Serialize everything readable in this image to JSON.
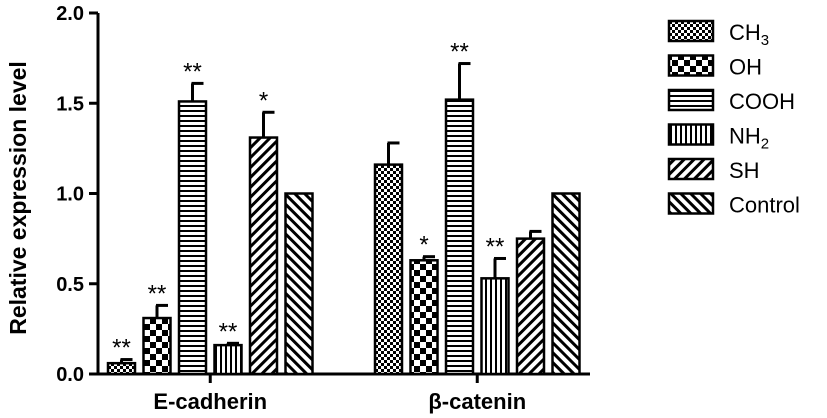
{
  "chart_data": {
    "type": "bar",
    "title": "",
    "xlabel": "",
    "ylabel": "Relative expression level",
    "ylim": [
      0,
      2.0
    ],
    "yticks": [
      "0.0",
      "0.5",
      "1.0",
      "1.5",
      "2.0"
    ],
    "grid": false,
    "legend_position": "right",
    "categories": [
      "E-cadherin",
      "β-catenin"
    ],
    "series": [
      {
        "name": "CH",
        "subscript": "3",
        "pattern": "checker-small",
        "values": [
          0.06,
          1.16
        ],
        "errors": [
          0.02,
          0.12
        ],
        "significance": [
          "**",
          ""
        ]
      },
      {
        "name": "OH",
        "subscript": "",
        "pattern": "checker-large",
        "values": [
          0.31,
          0.63
        ],
        "errors": [
          0.07,
          0.02
        ],
        "significance": [
          "**",
          "*"
        ]
      },
      {
        "name": "COOH",
        "subscript": "",
        "pattern": "horizontal-lines",
        "values": [
          1.51,
          1.52
        ],
        "errors": [
          0.1,
          0.2
        ],
        "significance": [
          "**",
          "**"
        ]
      },
      {
        "name": "NH",
        "subscript": "2",
        "pattern": "vertical-lines",
        "values": [
          0.16,
          0.53
        ],
        "errors": [
          0.01,
          0.11
        ],
        "significance": [
          "**",
          "**"
        ]
      },
      {
        "name": "SH",
        "subscript": "",
        "pattern": "diagonal-forward",
        "values": [
          1.31,
          0.75
        ],
        "errors": [
          0.14,
          0.04
        ],
        "significance": [
          "*",
          ""
        ]
      },
      {
        "name": "Control",
        "subscript": "",
        "pattern": "diagonal-back",
        "values": [
          1.0,
          1.0
        ],
        "errors": [
          0.0,
          0.0
        ],
        "significance": [
          "",
          ""
        ]
      }
    ]
  }
}
